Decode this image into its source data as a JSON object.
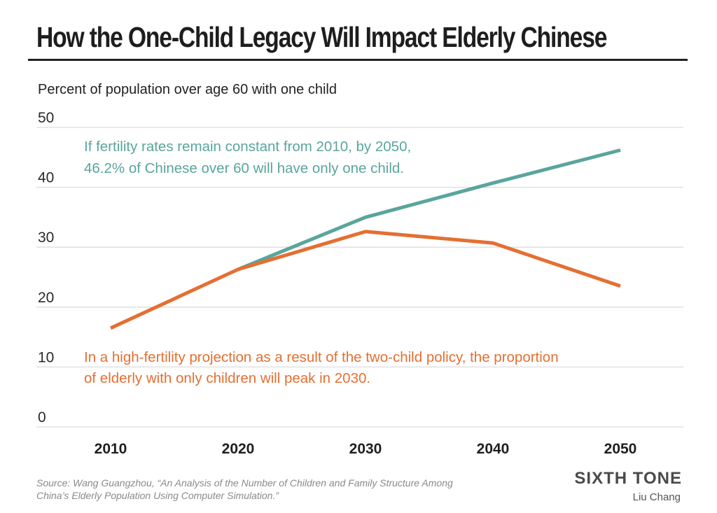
{
  "header": {
    "title": "How the One-Child Legacy Will Impact Elderly Chinese",
    "subtitle": "Percent of population over age 60 with one child"
  },
  "annotations": {
    "teal_line1": "If fertility rates remain constant from 2010, by 2050,",
    "teal_line2": "46.2% of Chinese over 60 will have only one child.",
    "orange_line1": "In a high-fertility projection as a result of the two-child policy, the proportion",
    "orange_line2": "of elderly with only children will peak in 2030."
  },
  "footer": {
    "source_line1": "Source: Wang Guangzhou, “An Analysis of the Number of Children and Family Structure Among",
    "source_line2": "China’s Elderly Population Using Computer Simulation.”",
    "brand": "SIXTH TONE",
    "credit": "Liu Chang"
  },
  "colors": {
    "teal": "#5aa59d",
    "orange": "#e46f32",
    "grid": "#dedede"
  },
  "chart_data": {
    "type": "line",
    "title": "How the One-Child Legacy Will Impact Elderly Chinese",
    "ylabel": "Percent of population over age 60 with one child",
    "x": [
      2010,
      2020,
      2030,
      2040,
      2050
    ],
    "ylim": [
      0,
      50
    ],
    "yticks": [
      0,
      10,
      20,
      30,
      40,
      50
    ],
    "grid": true,
    "series": [
      {
        "key": "constant",
        "color": "#5aa59d",
        "x": [
          2020,
          2030,
          2040,
          2050
        ],
        "values": [
          26.3,
          35.0,
          40.7,
          46.2
        ]
      },
      {
        "key": "high",
        "color": "#e46f32",
        "x": [
          2010,
          2020,
          2030,
          2040,
          2050
        ],
        "values": [
          16.5,
          26.3,
          32.6,
          30.7,
          23.5
        ]
      }
    ]
  }
}
